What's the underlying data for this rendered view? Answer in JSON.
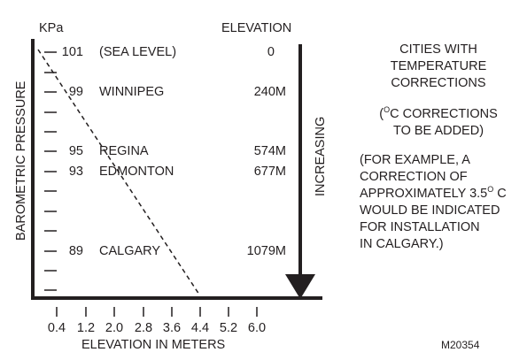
{
  "header": {
    "kpa_label": "KPa",
    "elevation_label": "ELEVATION"
  },
  "axis": {
    "y_label": "BAROMETRIC PRESSURE",
    "x_label": "ELEVATION IN METERS",
    "x_ticks": [
      "0.4",
      "1.2",
      "2.0",
      "2.8",
      "3.6",
      "4.4",
      "5.2",
      "6.0"
    ],
    "arrow_label": "INCREASING"
  },
  "rows": [
    {
      "pressure": "101",
      "city": "(SEA LEVEL)",
      "elevation": "0"
    },
    {
      "pressure": "99",
      "city": "WINNIPEG",
      "elevation": "240M"
    },
    {
      "pressure": "95",
      "city": "REGINA",
      "elevation": "574M"
    },
    {
      "pressure": "93",
      "city": "EDMONTON",
      "elevation": "677M"
    },
    {
      "pressure": "89",
      "city": "CALGARY",
      "elevation": "1079M"
    }
  ],
  "notes": {
    "title_lines": [
      "CITIES WITH",
      "TEMPERATURE",
      "CORRECTIONS"
    ],
    "degree_o": "O",
    "corr_line1_rest": "C CORRECTIONS",
    "corr_line2": "TO BE ADDED)",
    "corr_open": "(",
    "example_line1": "(FOR EXAMPLE, A",
    "example_line2": "CORRECTION OF",
    "example_line3_pre": "APPROXIMATELY 3.5",
    "example_line3_post": " C",
    "example_line4": "WOULD BE INDICATED",
    "example_line5": "FOR INSTALLATION",
    "example_line6": "IN CALGARY.)"
  },
  "figure_id": "M20354",
  "colors": {
    "ink": "#231f20",
    "background": "#ffffff"
  }
}
